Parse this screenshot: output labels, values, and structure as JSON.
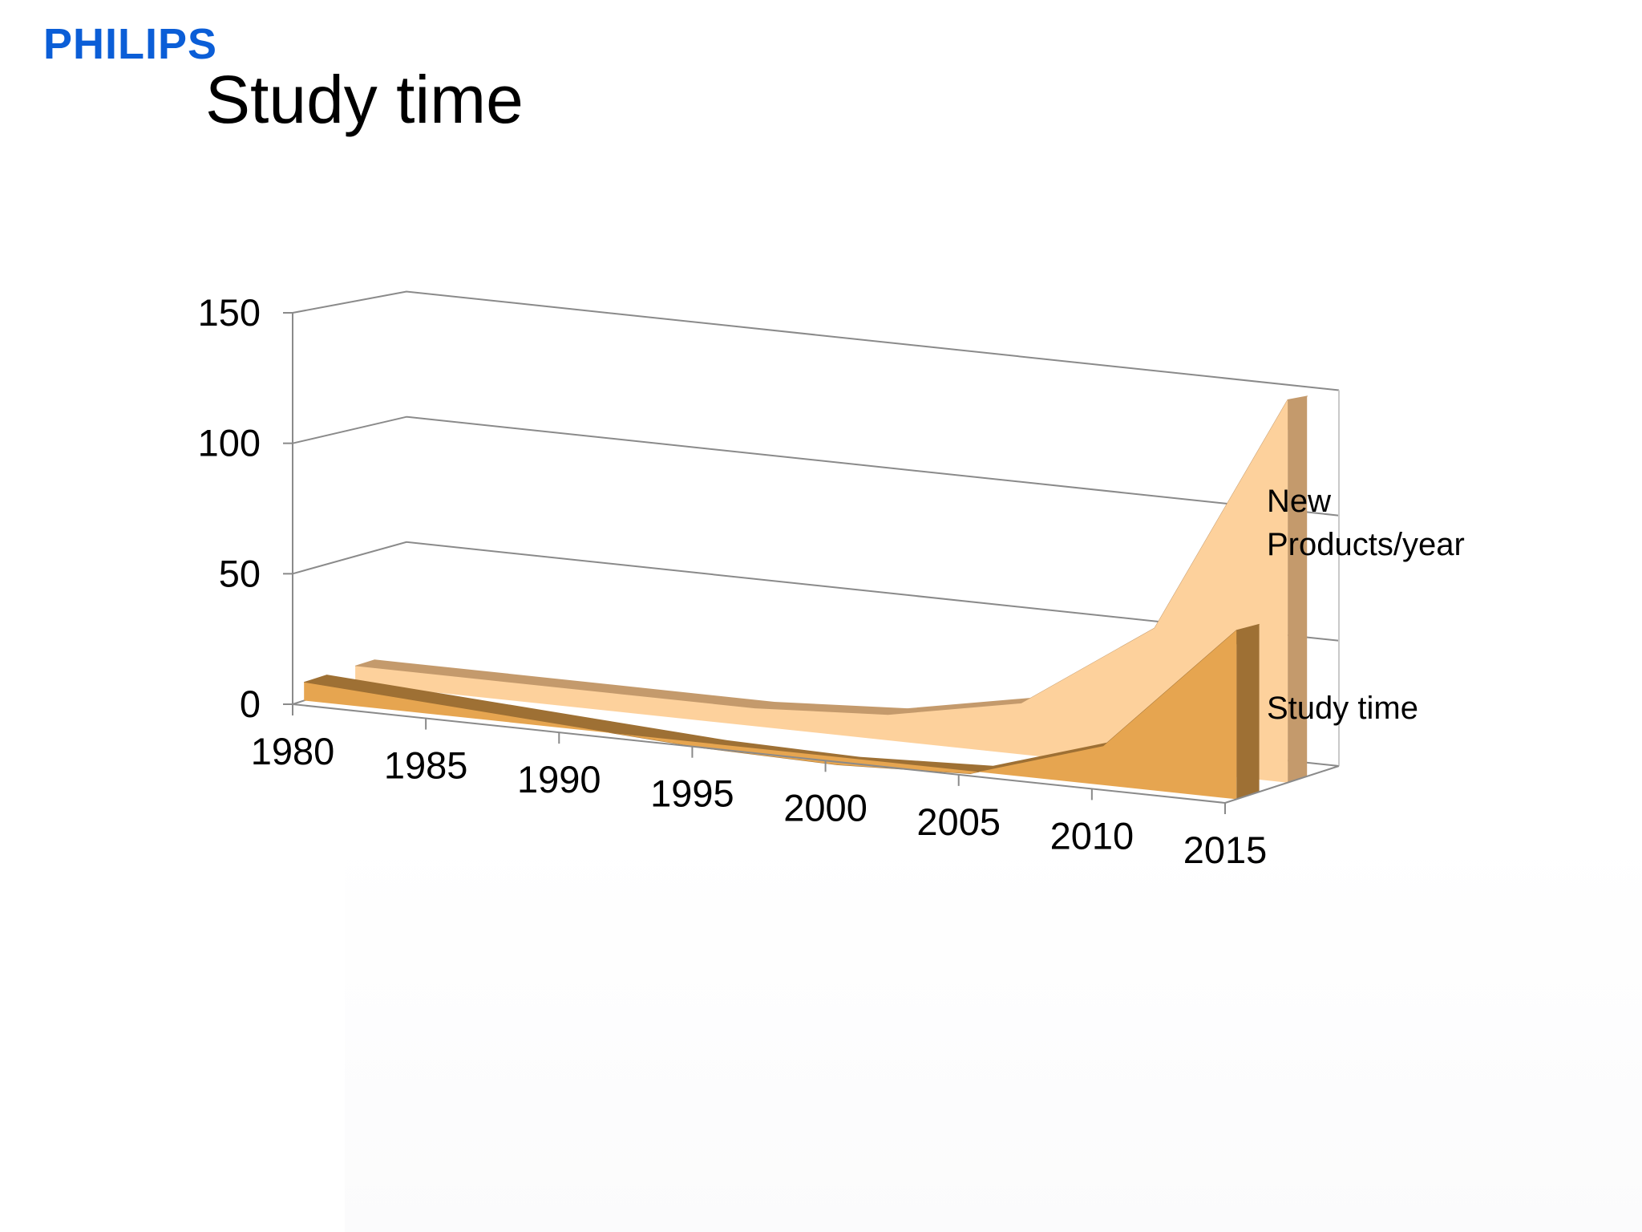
{
  "slide": {
    "brand": "PHILIPS",
    "title": "Study time"
  },
  "colors": {
    "brand": "#0b5ed7",
    "new_products_fill": "#fdd19c",
    "new_products_top": "#c49a6c",
    "study_time_fill": "#e6a550",
    "study_time_top": "#9e7034",
    "grid": "#8a8a8a"
  },
  "chart_data": {
    "type": "area",
    "three_d": true,
    "categories": [
      "1980",
      "1985",
      "1990",
      "1995",
      "2000",
      "2005",
      "2010",
      "2015"
    ],
    "y_ticks": [
      "0",
      "50",
      "100",
      "150"
    ],
    "ylim": [
      0,
      150
    ],
    "grid": true,
    "legend_position": "right",
    "series": [
      {
        "name": "New Products/year",
        "values": [
          7,
          7,
          7,
          7,
          10,
          20,
          55,
          150
        ]
      },
      {
        "name": "Study time",
        "values": [
          7,
          4,
          1,
          -2,
          -3,
          -1,
          15,
          65
        ]
      }
    ]
  }
}
